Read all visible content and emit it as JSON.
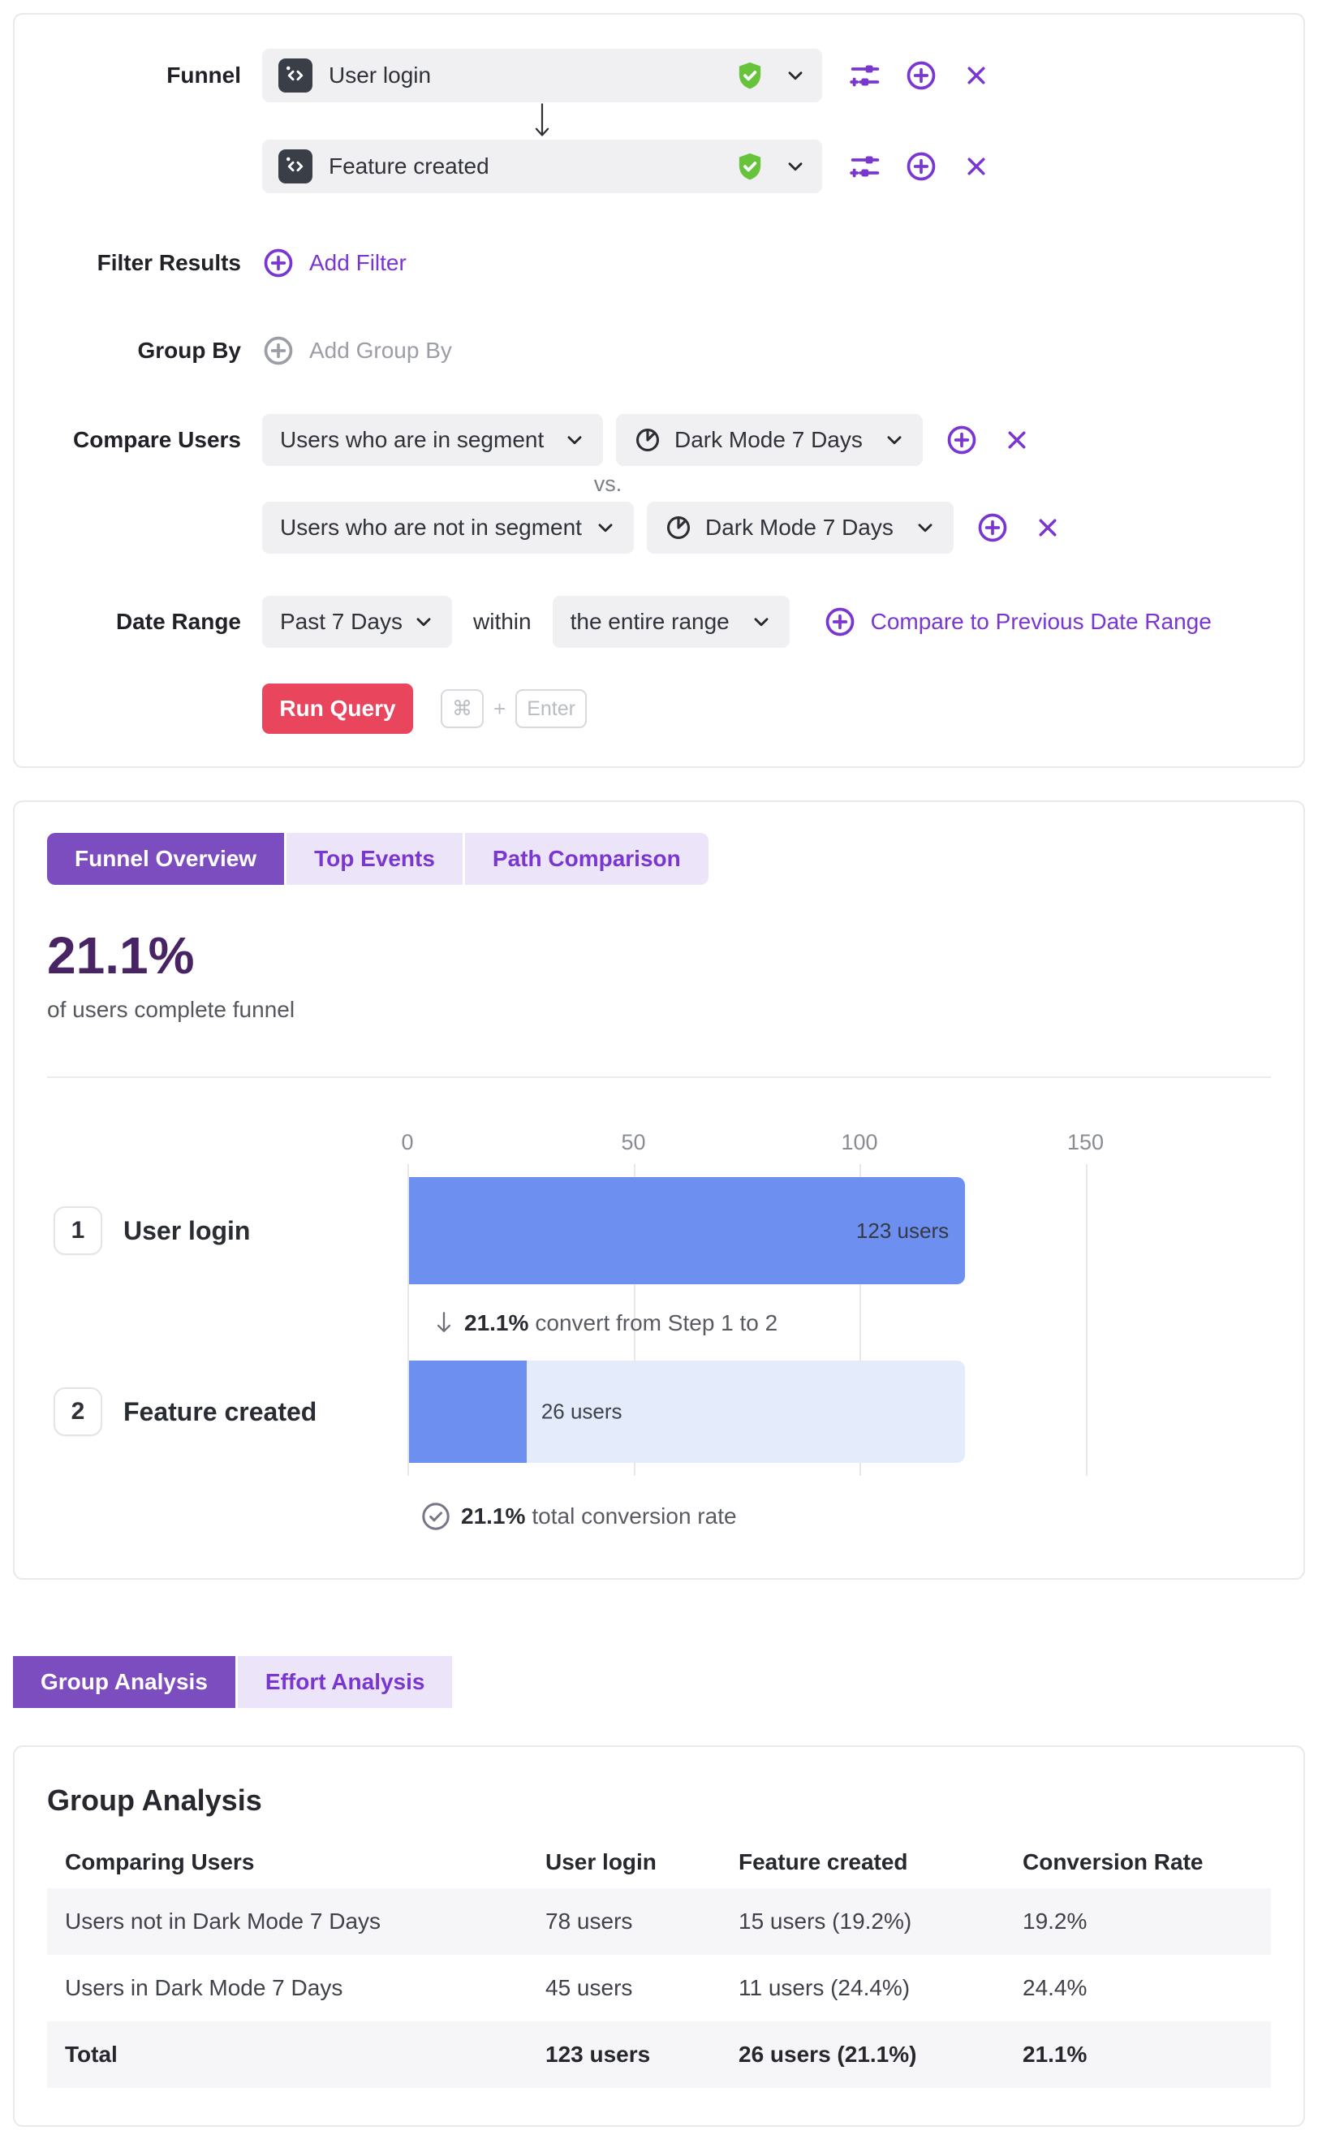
{
  "colors": {
    "accent_purple": "#7a36d2",
    "tab_active_purple": "#7c4dbf",
    "tab_inactive_bg": "#ece4f8",
    "headline_purple": "#482465",
    "bar_blue": "#6c8ff0",
    "bar_track_blue": "#e4ebfb",
    "run_button_red": "#e9465e",
    "verified_green": "#67c23c"
  },
  "query_builder": {
    "funnel_label": "Funnel",
    "steps": [
      {
        "name": "User login"
      },
      {
        "name": "Feature created"
      }
    ],
    "filter_results_label": "Filter Results",
    "add_filter_label": "Add Filter",
    "group_by_label": "Group By",
    "add_group_by_label": "Add Group By",
    "compare_users_label": "Compare Users",
    "vs_label": "vs.",
    "comparisons": [
      {
        "segment_type": "Users who are in segment",
        "segment_name": "Dark Mode 7 Days"
      },
      {
        "segment_type": "Users who are not in segment",
        "segment_name": "Dark Mode 7 Days"
      }
    ],
    "date_range_label": "Date Range",
    "date_range_value": "Past 7 Days",
    "within_label": "within",
    "within_value": "the entire range",
    "compare_previous_label": "Compare to Previous Date Range",
    "run_query_label": "Run Query",
    "kbd_cmd": "⌘",
    "kbd_plus": "+",
    "kbd_enter": "Enter"
  },
  "results": {
    "tabs": [
      {
        "label": "Funnel Overview",
        "active": true
      },
      {
        "label": "Top Events",
        "active": false
      },
      {
        "label": "Path Comparison",
        "active": false
      }
    ],
    "headline_value": "21.1%",
    "headline_caption": "of users complete funnel"
  },
  "chart_data": {
    "type": "bar",
    "orientation": "horizontal",
    "title": "Funnel Overview",
    "categories": [
      "User login",
      "Feature created"
    ],
    "step_numbers": [
      "1",
      "2"
    ],
    "values": [
      123,
      26
    ],
    "value_labels": [
      "123 users",
      "26 users"
    ],
    "ticks": [
      0,
      50,
      100,
      150
    ],
    "xlim": [
      0,
      155
    ],
    "grid": true,
    "step_conversion_value": "21.1%",
    "step_conversion_text": "convert from Step 1 to 2",
    "total_conversion_value": "21.1%",
    "total_conversion_text": "total conversion rate"
  },
  "analysis_tabs": [
    {
      "label": "Group Analysis",
      "active": true
    },
    {
      "label": "Effort Analysis",
      "active": false
    }
  ],
  "group_analysis": {
    "title": "Group Analysis",
    "columns": [
      "Comparing Users",
      "User login",
      "Feature created",
      "Conversion Rate"
    ],
    "rows": [
      [
        "Users not in Dark Mode 7 Days",
        "78 users",
        "15 users (19.2%)",
        "19.2%"
      ],
      [
        "Users in Dark Mode 7 Days",
        "45 users",
        "11 users (24.4%)",
        "24.4%"
      ],
      [
        "Total",
        "123 users",
        "26 users (21.1%)",
        "21.1%"
      ]
    ]
  }
}
